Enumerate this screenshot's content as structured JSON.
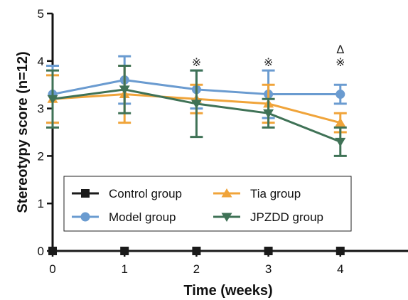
{
  "chart_data": {
    "type": "line",
    "xlabel": "Time (weeks)",
    "ylabel": "Stereotypy score (n=12)",
    "x": [
      0,
      1,
      2,
      3,
      4
    ],
    "xlim": [
      0,
      5
    ],
    "ylim": [
      0,
      5
    ],
    "xticks": [
      "0",
      "1",
      "2",
      "3",
      "4",
      "5"
    ],
    "yticks": [
      "0",
      "1",
      "2",
      "3",
      "4",
      "5"
    ],
    "grid": false,
    "legend_position": "bottom-center",
    "series": [
      {
        "name": "Control group",
        "marker": "square",
        "color": "#1a1a1a",
        "values": [
          0,
          0,
          0,
          0,
          0
        ],
        "errors": [
          0,
          0,
          0,
          0,
          0
        ]
      },
      {
        "name": "Model group",
        "marker": "circle",
        "color": "#6a9bd0",
        "values": [
          3.3,
          3.6,
          3.4,
          3.3,
          3.3
        ],
        "errors": [
          0.6,
          0.5,
          0.4,
          0.5,
          0.2
        ]
      },
      {
        "name": "Tia group",
        "marker": "triangle-up",
        "color": "#f0a43a",
        "values": [
          3.2,
          3.3,
          3.2,
          3.1,
          2.7
        ],
        "errors": [
          0.5,
          0.6,
          0.3,
          0.4,
          0.2
        ]
      },
      {
        "name": "JPZDD group",
        "marker": "triangle-down",
        "color": "#3f7256",
        "values": [
          3.2,
          3.4,
          3.1,
          2.9,
          2.3
        ],
        "errors": [
          0.6,
          0.5,
          0.7,
          0.3,
          0.3
        ]
      }
    ],
    "annotations": [
      {
        "x": 2,
        "text": "※"
      },
      {
        "x": 3,
        "text": "※"
      },
      {
        "x": 4,
        "text": "Δ"
      },
      {
        "x": 4,
        "text": "※"
      }
    ]
  }
}
